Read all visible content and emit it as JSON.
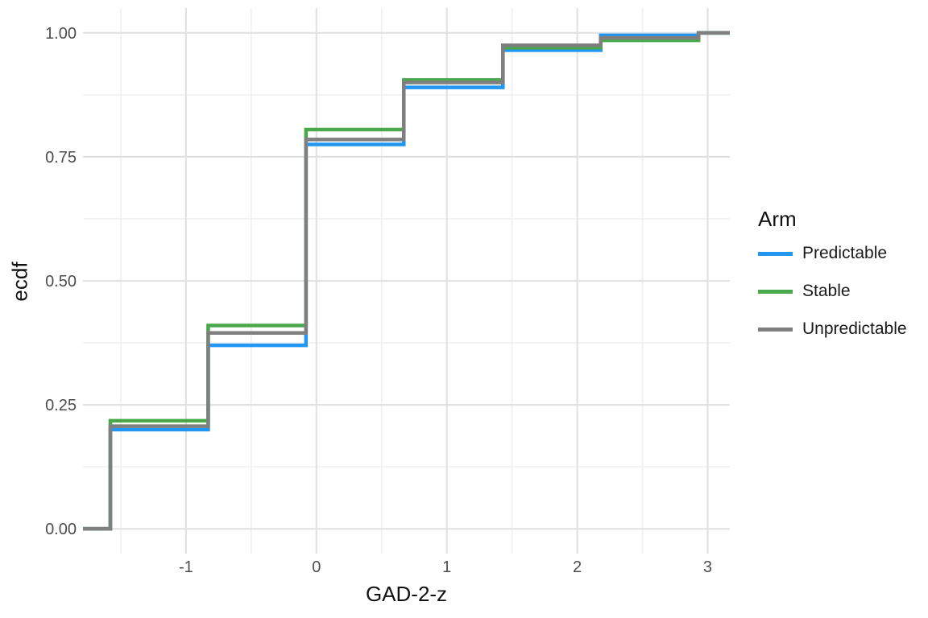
{
  "figure": {
    "background": "#ffffff",
    "grid_major_color": "#e2e2e2",
    "grid_minor_color": "#f0f0f0",
    "tick_label_color": "#4d4d4d"
  },
  "axes": {
    "x": {
      "title": "GAD-2-z",
      "tick_labels": [
        "-1",
        "0",
        "1",
        "2",
        "3"
      ],
      "tick_values": [
        -1,
        0,
        1,
        2,
        3
      ],
      "minor_values": [
        -1.5,
        -0.5,
        0.5,
        1.5,
        2.5
      ]
    },
    "y": {
      "title": "ecdf",
      "tick_labels": [
        "0.00",
        "0.25",
        "0.50",
        "0.75",
        "1.00"
      ],
      "tick_values": [
        0,
        0.25,
        0.5,
        0.75,
        1
      ],
      "minor_values": [
        0.125,
        0.375,
        0.625,
        0.875
      ]
    }
  },
  "legend": {
    "title": "Arm",
    "entries": [
      {
        "label": "Predictable",
        "color": "#2196F3"
      },
      {
        "label": "Stable",
        "color": "#4AA84C"
      },
      {
        "label": "Unpredictable",
        "color": "#7F7F7F"
      }
    ]
  },
  "chart_data": {
    "type": "line",
    "subtype": "step-ecdf",
    "title": "",
    "xlabel": "GAD-2-z",
    "ylabel": "ecdf",
    "xlim": [
      -1.79,
      3.17
    ],
    "ylim": [
      -0.05,
      1.05
    ],
    "grid": true,
    "legend_position": "right",
    "x_steps": [
      -1.58,
      -0.83,
      -0.08,
      0.67,
      1.43,
      2.18,
      2.93
    ],
    "series": [
      {
        "name": "Predictable",
        "color": "#2196F3",
        "ecdf_values": [
          0.2,
          0.37,
          0.775,
          0.89,
          0.965,
          0.995,
          1.0
        ]
      },
      {
        "name": "Stable",
        "color": "#4AA84C",
        "ecdf_values": [
          0.218,
          0.41,
          0.805,
          0.905,
          0.97,
          0.985,
          1.0
        ]
      },
      {
        "name": "Unpredictable",
        "color": "#7F7F7F",
        "ecdf_values": [
          0.207,
          0.395,
          0.785,
          0.9,
          0.975,
          0.99,
          1.0
        ]
      }
    ]
  }
}
